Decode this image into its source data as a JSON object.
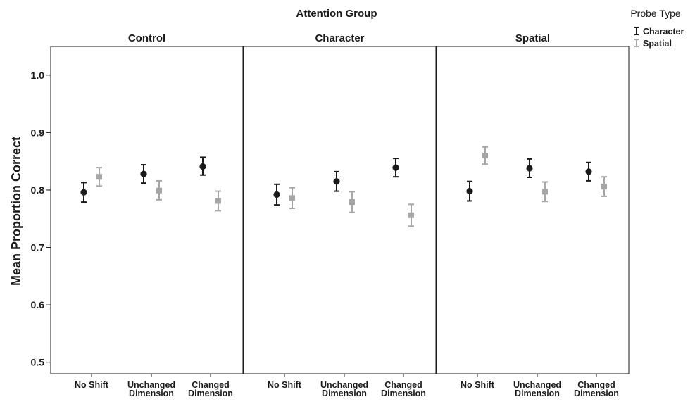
{
  "chart_data": {
    "type": "scatter",
    "title": "Attention Group",
    "ylabel": "Mean Proportion Correct",
    "ylim": [
      0.48,
      1.05
    ],
    "yticks": [
      0.5,
      0.6,
      0.7,
      0.8,
      0.9,
      1.0
    ],
    "ytick_labels": [
      "0.5",
      "0.6",
      "0.7",
      "0.8",
      "0.9",
      "1.0"
    ],
    "categories": [
      [
        "No Shift"
      ],
      [
        "Unchanged",
        "Dimension"
      ],
      [
        "Changed",
        "Dimension"
      ]
    ],
    "legend": {
      "title": "Probe Type",
      "placement": "top-right",
      "entries": [
        {
          "label": "Character",
          "color": "#1a1a1a",
          "marker": "circle"
        },
        {
          "label": "Spatial",
          "color": "#a6a6a6",
          "marker": "square"
        }
      ]
    },
    "panels": [
      {
        "title": "Control",
        "series": [
          {
            "name": "Character",
            "values": [
              0.796,
              0.828,
              0.841
            ],
            "lower": [
              0.779,
              0.812,
              0.826
            ],
            "upper": [
              0.813,
              0.844,
              0.857
            ]
          },
          {
            "name": "Spatial",
            "values": [
              0.823,
              0.799,
              0.781
            ],
            "lower": [
              0.807,
              0.783,
              0.764
            ],
            "upper": [
              0.839,
              0.816,
              0.798
            ]
          }
        ]
      },
      {
        "title": "Character",
        "series": [
          {
            "name": "Character",
            "values": [
              0.792,
              0.815,
              0.839
            ],
            "lower": [
              0.774,
              0.798,
              0.823
            ],
            "upper": [
              0.81,
              0.832,
              0.855
            ]
          },
          {
            "name": "Spatial",
            "values": [
              0.786,
              0.779,
              0.756
            ],
            "lower": [
              0.768,
              0.761,
              0.737
            ],
            "upper": [
              0.804,
              0.797,
              0.775
            ]
          }
        ]
      },
      {
        "title": "Spatial",
        "series": [
          {
            "name": "Character",
            "values": [
              0.798,
              0.838,
              0.832
            ],
            "lower": [
              0.781,
              0.822,
              0.816
            ],
            "upper": [
              0.815,
              0.854,
              0.848
            ]
          },
          {
            "name": "Spatial",
            "values": [
              0.86,
              0.797,
              0.806
            ],
            "lower": [
              0.845,
              0.78,
              0.789
            ],
            "upper": [
              0.875,
              0.814,
              0.823
            ]
          }
        ]
      }
    ]
  }
}
